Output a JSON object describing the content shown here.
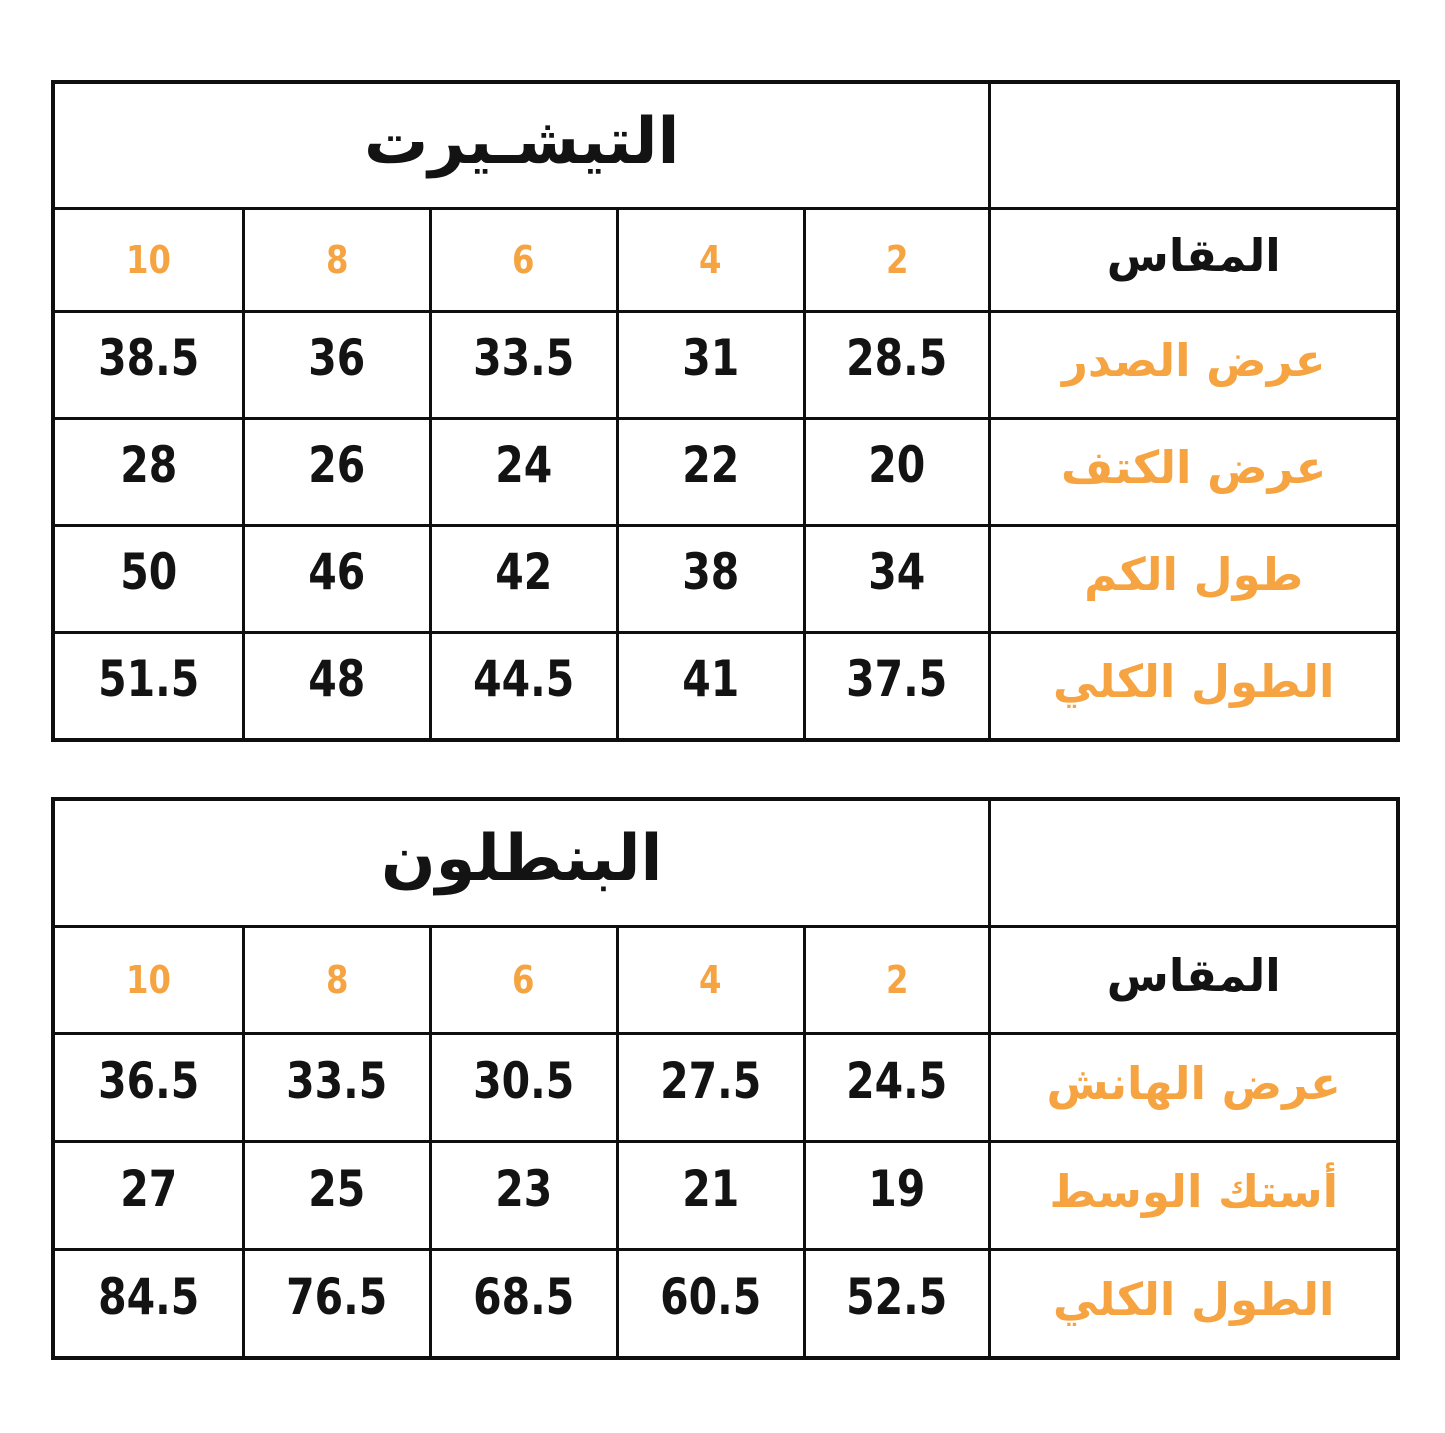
{
  "colors": {
    "accent_orange": "#F6A442",
    "ink_black": "#131313",
    "background": "#FFFFFF",
    "border": "#0F0F0F"
  },
  "tables": {
    "tshirt": {
      "title": "التيشـيرت",
      "size_header_label": "المقاس",
      "sizes": [
        "10",
        "8",
        "6",
        "4",
        "2"
      ],
      "rows": [
        {
          "label": "عرض الصدر",
          "values": [
            "38.5",
            "36",
            "33.5",
            "31",
            "28.5"
          ]
        },
        {
          "label": "عرض الكتف",
          "values": [
            "28",
            "26",
            "24",
            "22",
            "20"
          ]
        },
        {
          "label": "طول الكم",
          "values": [
            "50",
            "46",
            "42",
            "38",
            "34"
          ]
        },
        {
          "label": "الطول الكلي",
          "values": [
            "51.5",
            "48",
            "44.5",
            "41",
            "37.5"
          ]
        }
      ]
    },
    "pants": {
      "title": "البنطلون",
      "size_header_label": "المقاس",
      "sizes": [
        "10",
        "8",
        "6",
        "4",
        "2"
      ],
      "rows": [
        {
          "label": "عرض الهانش",
          "values": [
            "36.5",
            "33.5",
            "30.5",
            "27.5",
            "24.5"
          ]
        },
        {
          "label": "أستك الوسط",
          "values": [
            "27",
            "25",
            "23",
            "21",
            "19"
          ]
        },
        {
          "label": "الطول الكلي",
          "values": [
            "84.5",
            "76.5",
            "68.5",
            "60.5",
            "52.5"
          ]
        }
      ]
    }
  }
}
